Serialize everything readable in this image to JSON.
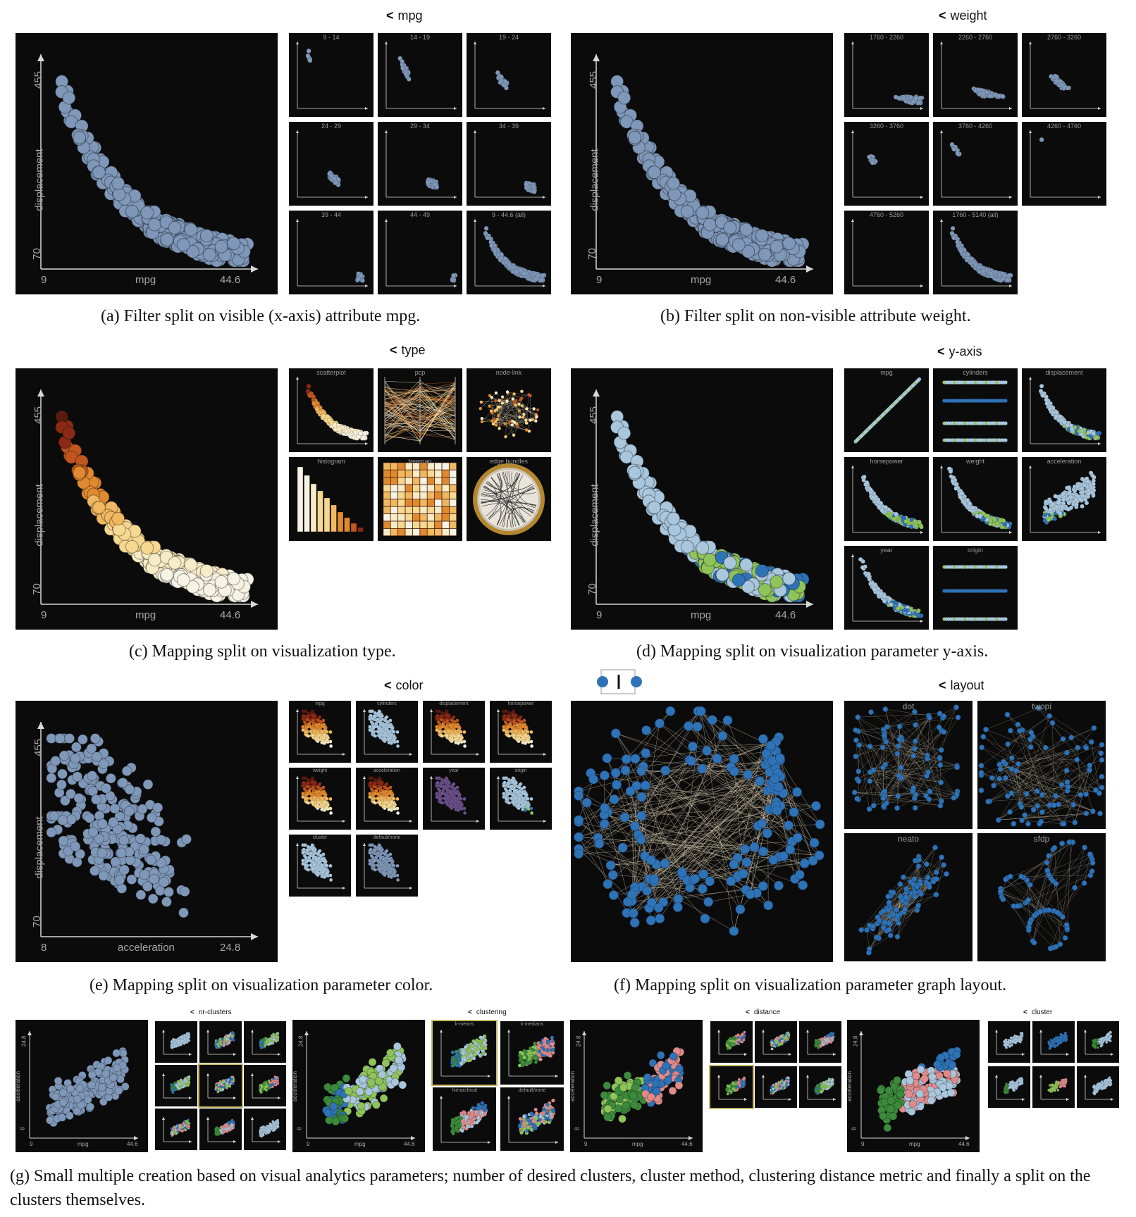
{
  "a": {
    "header": "mpg",
    "caption": "(a) Filter split on visible (x-axis) attribute mpg.",
    "main": {
      "y_axis": "displacement",
      "y_max": "455",
      "y_min": "70",
      "x_axis": "mpg",
      "x_min": "9",
      "x_max": "44.6"
    },
    "thumbs": [
      "9 - 14",
      "14 - 19",
      "19 - 24",
      "24 - 29",
      "29 - 34",
      "34 - 39",
      "39 - 44",
      "44 - 49",
      "9 - 44.6 (all)"
    ]
  },
  "b": {
    "header": "weight",
    "caption": "(b) Filter split on non-visible attribute weight.",
    "main": {
      "y_axis": "displacement",
      "y_max": "455",
      "y_min": "70",
      "x_axis": "mpg",
      "x_min": "9",
      "x_max": "44.6"
    },
    "thumbs": [
      "1760 - 2260",
      "2260 - 2760",
      "2760 - 3260",
      "3260 - 3760",
      "3760 - 4260",
      "4260 - 4760",
      "4760 - 5260",
      "1760 - 5140 (all)"
    ]
  },
  "c": {
    "header": "type",
    "caption": "(c) Mapping split on visualization type.",
    "main": {
      "y_axis": "displacement",
      "y_max": "455",
      "y_min": "70",
      "x_axis": "mpg",
      "x_min": "9",
      "x_max": "44.6"
    },
    "thumbs": [
      "scatterplot",
      "pcp",
      "node-link",
      "histogram",
      "treemap",
      "edge bundles"
    ]
  },
  "d": {
    "header": "y-axis",
    "caption": "(d) Mapping split on visualization parameter y-axis.",
    "main": {
      "y_axis": "displacement",
      "y_max": "455",
      "y_min": "70",
      "x_axis": "mpg",
      "x_min": "9",
      "x_max": "44.6"
    },
    "thumbs": [
      "mpg",
      "cylinders",
      "displacement",
      "horsepower",
      "weight",
      "acceleration",
      "year",
      "origin"
    ]
  },
  "e": {
    "header": "color",
    "caption": "(e) Mapping split on visualization parameter color.",
    "main": {
      "y_axis": "displacement",
      "y_max": "455",
      "y_min": "70",
      "x_axis": "acceleration",
      "x_min": "8",
      "x_max": "24.8"
    },
    "thumbs": [
      "mpg",
      "cylinders",
      "displacement",
      "horsepower",
      "weight",
      "acceleration",
      "year",
      "origin",
      "cluster",
      "default/none"
    ]
  },
  "f": {
    "header": "layout",
    "caption": "(f) Mapping split on visualization parameter graph layout.",
    "thumbs": [
      "dot",
      "twopi",
      "neato",
      "sfdp"
    ]
  },
  "g": {
    "headers": [
      "nr-clusters",
      "clustering",
      "distance",
      "cluster"
    ],
    "clustering_thumbs": [
      "k-means",
      "k-medians",
      "hierarchical",
      "default/none"
    ],
    "main": {
      "y_axis": "acceleration",
      "y_max": "24.8",
      "y_min": "8",
      "x_axis": "mpg",
      "x_min": "9",
      "x_max": "44.6"
    },
    "caption": "(g) Small multiple creation based on visual analytics parameters; number of desired clusters, cluster method, clustering distance metric and finally a split on the clusters themselves."
  },
  "colors": {
    "steel": "#7f97b8",
    "blue": "#2f73b7",
    "light_blue": "#a9c6dd",
    "green": "#8fc45a",
    "dark_green": "#3c8a3c",
    "pink": "#e08a8a",
    "dark_blue": "#1f4f86",
    "panel_bg": "#0b0b0b"
  },
  "icons": {
    "header_icon": "split-icon",
    "slider_icon": "slider-icon"
  }
}
